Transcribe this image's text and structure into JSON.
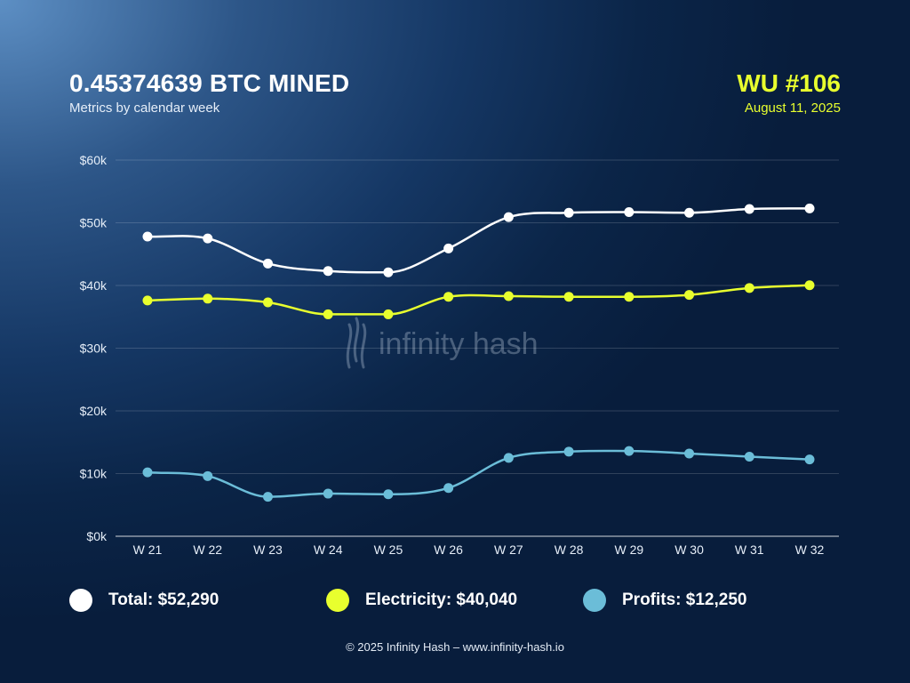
{
  "header": {
    "title": "0.45374639 BTC MINED",
    "subtitle": "Metrics by calendar week",
    "wu_label": "WU #106",
    "date": "August 11, 2025"
  },
  "watermark": "infinity hash",
  "legend": [
    {
      "label": "Total: $52,290",
      "color": "#ffffff"
    },
    {
      "label": "Electricity: $40,040",
      "color": "#e8ff2e"
    },
    {
      "label": "Profits: $12,250",
      "color": "#6bbdd8"
    }
  ],
  "footer": "© 2025 Infinity Hash – www.infinity-hash.io",
  "chart_data": {
    "type": "line",
    "categories": [
      "W 21",
      "W 22",
      "W 23",
      "W 24",
      "W 25",
      "W 26",
      "W 27",
      "W 28",
      "W 29",
      "W 30",
      "W 31",
      "W 32"
    ],
    "yticks": [
      0,
      10000,
      20000,
      30000,
      40000,
      50000,
      60000
    ],
    "ytick_labels": [
      "$0k",
      "$10k",
      "$20k",
      "$30k",
      "$40k",
      "$50k",
      "$60k"
    ],
    "ylim": [
      0,
      60000
    ],
    "grid": true,
    "series": [
      {
        "name": "Total",
        "color": "#ffffff",
        "values": [
          47800,
          47500,
          43500,
          42300,
          42100,
          45900,
          50900,
          51600,
          51700,
          51600,
          52200,
          52290
        ]
      },
      {
        "name": "Electricity",
        "color": "#e8ff2e",
        "values": [
          37600,
          37900,
          37300,
          35400,
          35400,
          38200,
          38300,
          38200,
          38200,
          38500,
          39600,
          40040
        ]
      },
      {
        "name": "Profits",
        "color": "#6bbdd8",
        "values": [
          10200,
          9600,
          6300,
          6800,
          6700,
          7700,
          12500,
          13500,
          13600,
          13200,
          12700,
          12250
        ]
      }
    ]
  }
}
